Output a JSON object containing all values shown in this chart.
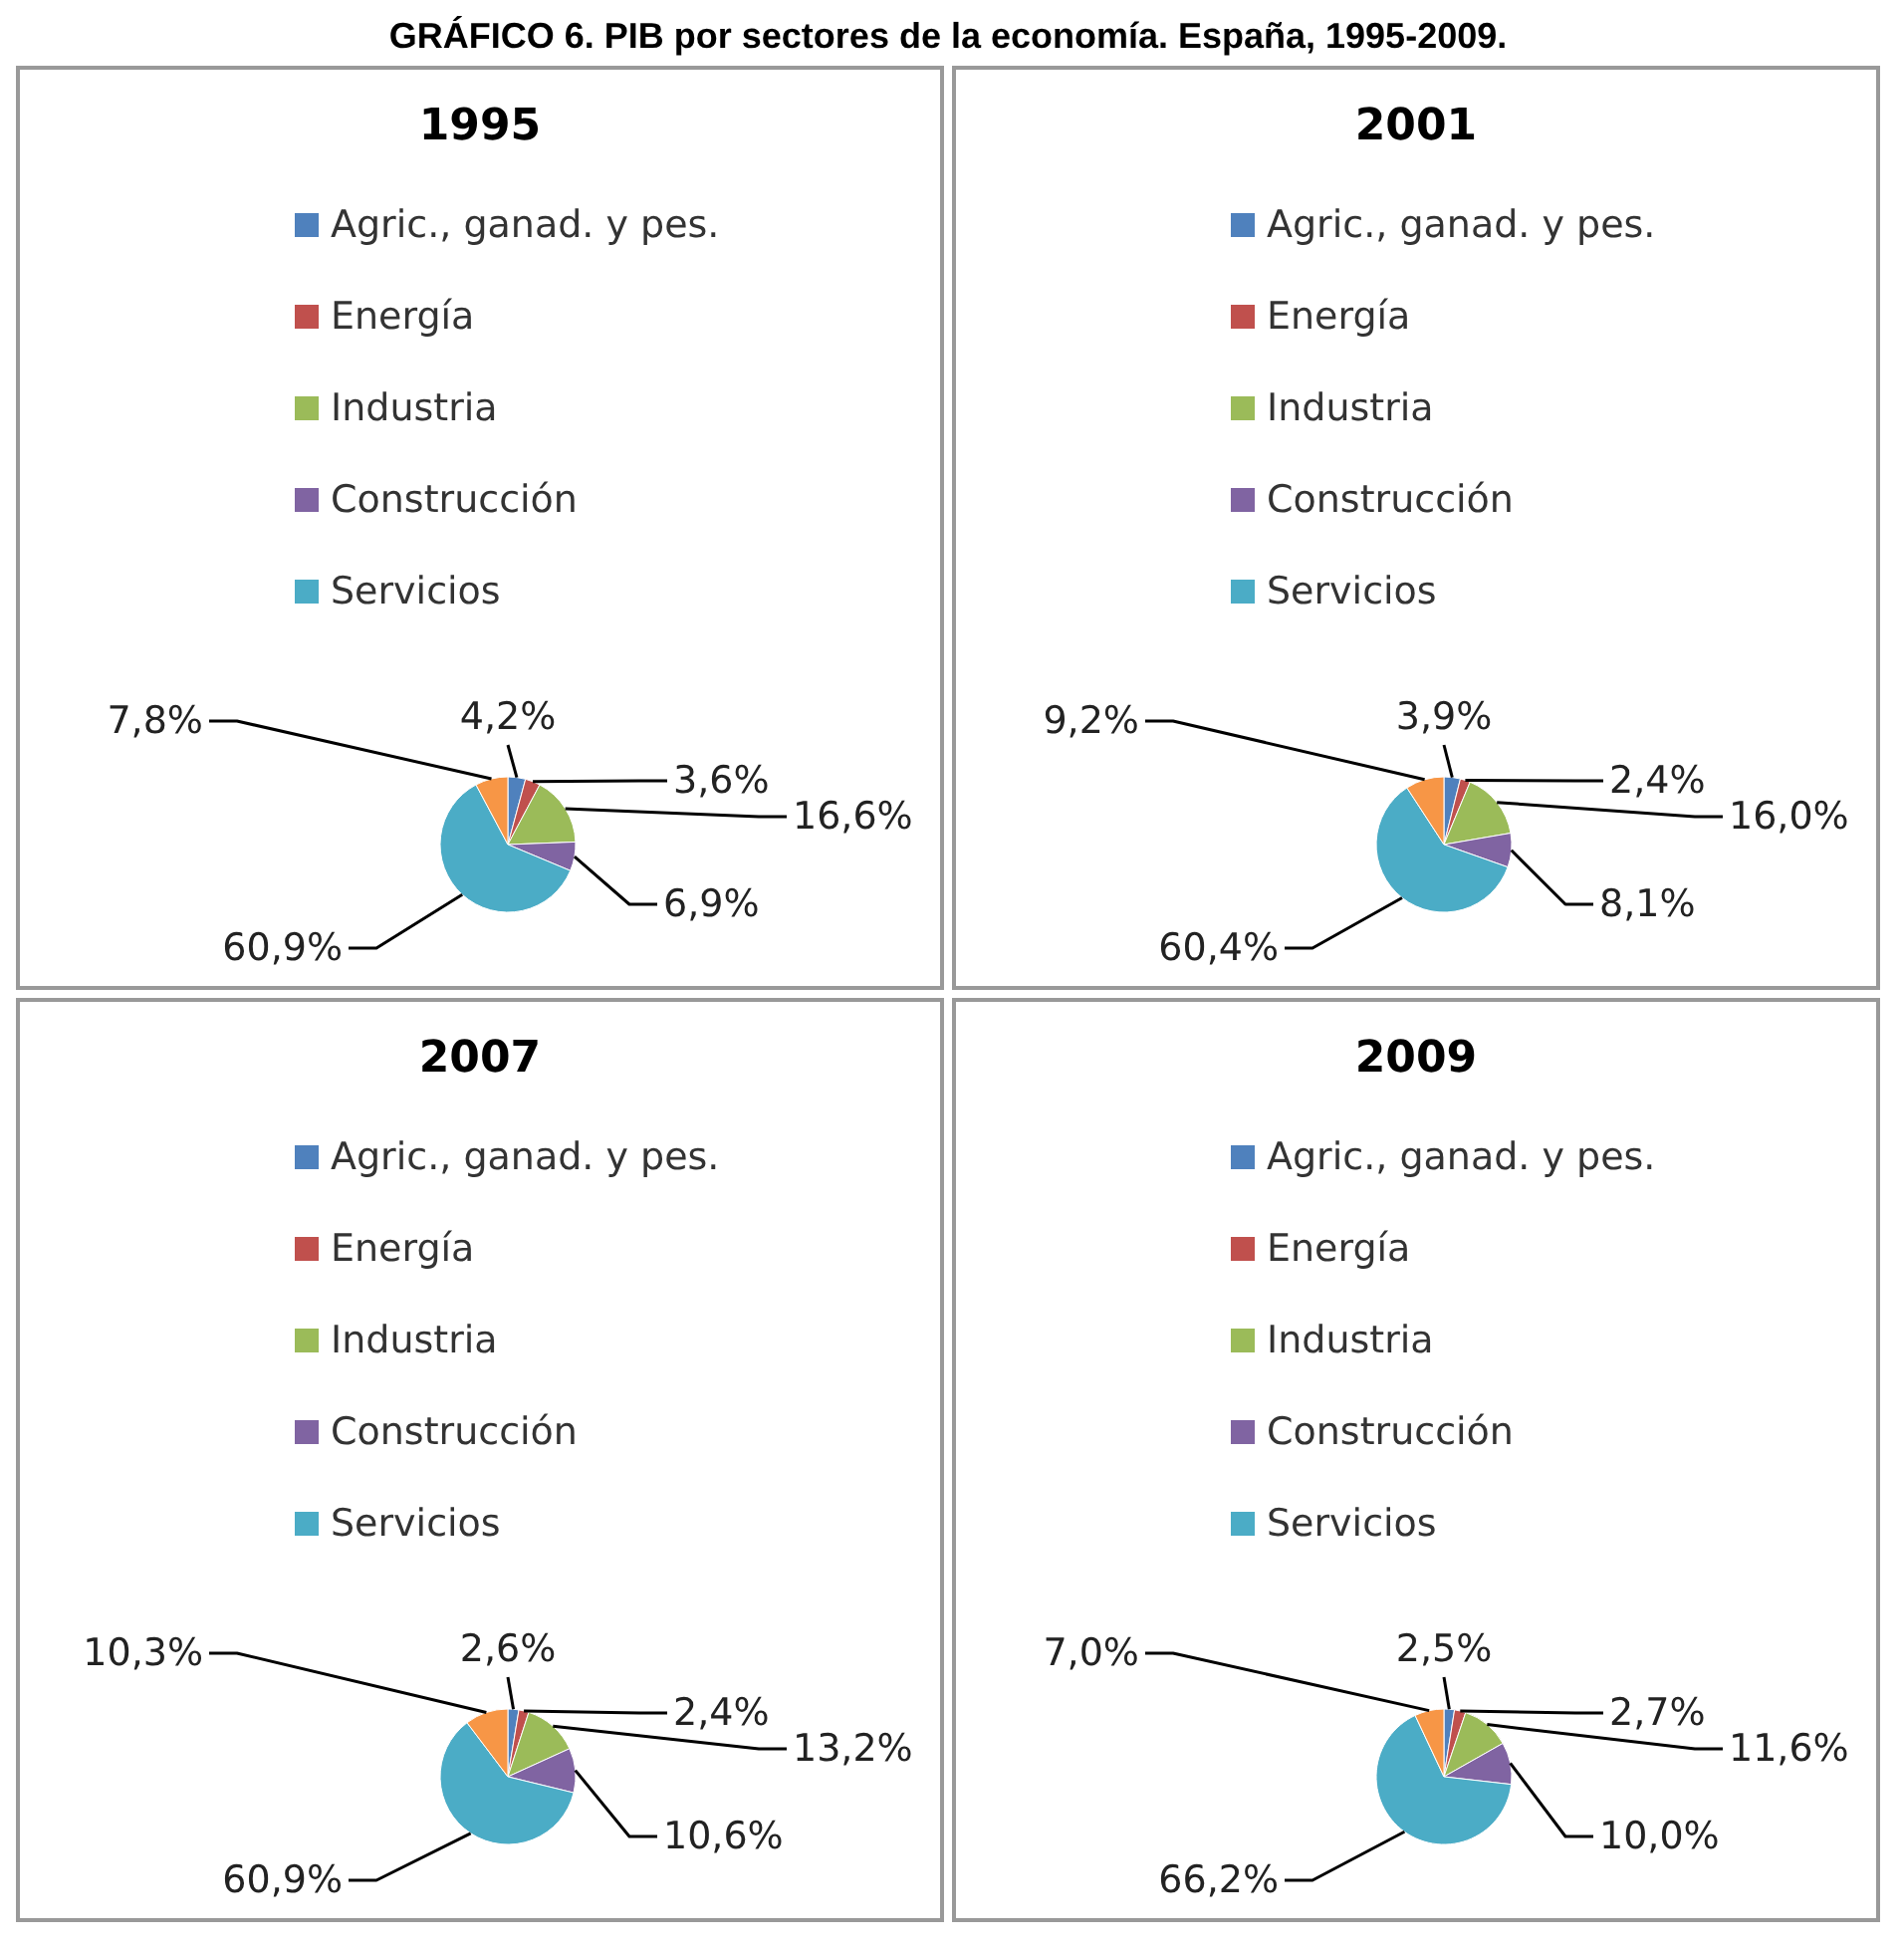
{
  "chart_data": [
    {
      "type": "pie",
      "title": "1995",
      "annotations": [
        "GRÁFICO 6. PIB por sectores de la economía. España, 1995-2009."
      ],
      "legend": "top",
      "categories": [
        "Agric., ganad. y pes.",
        "Energía",
        "Industria",
        "Construcción",
        "Servicios",
        null
      ],
      "colors": [
        "#4f81bd",
        "#c0504d",
        "#9bbb59",
        "#8064a2",
        "#4bacc6",
        "#f79646"
      ],
      "values": [
        4.2,
        3.6,
        16.6,
        6.9,
        60.9,
        7.8
      ],
      "value_labels": [
        "4,2%",
        "3,6%",
        "16,6%",
        "6,9%",
        "60,9%",
        "7,8%"
      ]
    },
    {
      "type": "pie",
      "title": "2001",
      "legend": "top",
      "categories": [
        "Agric., ganad. y pes.",
        "Energía",
        "Industria",
        "Construcción",
        "Servicios",
        null
      ],
      "colors": [
        "#4f81bd",
        "#c0504d",
        "#9bbb59",
        "#8064a2",
        "#4bacc6",
        "#f79646"
      ],
      "values": [
        3.9,
        2.4,
        16.0,
        8.1,
        60.4,
        9.2
      ],
      "value_labels": [
        "3,9%",
        "2,4%",
        "16,0%",
        "8,1%",
        "60,4%",
        "9,2%"
      ]
    },
    {
      "type": "pie",
      "title": "2007",
      "legend": "top",
      "categories": [
        "Agric., ganad. y pes.",
        "Energía",
        "Industria",
        "Construcción",
        "Servicios",
        null
      ],
      "colors": [
        "#4f81bd",
        "#c0504d",
        "#9bbb59",
        "#8064a2",
        "#4bacc6",
        "#f79646"
      ],
      "values": [
        2.6,
        2.4,
        13.2,
        10.6,
        60.9,
        10.3
      ],
      "value_labels": [
        "2,6%",
        "2,4%",
        "13,2%",
        "10,6%",
        "60,9%",
        "10,3%"
      ]
    },
    {
      "type": "pie",
      "title": "2009",
      "legend": "top",
      "categories": [
        "Agric., ganad. y pes.",
        "Energía",
        "Industria",
        "Construcción",
        "Servicios",
        null
      ],
      "colors": [
        "#4f81bd",
        "#c0504d",
        "#9bbb59",
        "#8064a2",
        "#4bacc6",
        "#f79646"
      ],
      "values": [
        2.5,
        2.7,
        11.6,
        10.0,
        66.2,
        7.0
      ],
      "value_labels": [
        "2,5%",
        "2,7%",
        "11,6%",
        "10,0%",
        "66,2%",
        "7,0%"
      ]
    }
  ]
}
